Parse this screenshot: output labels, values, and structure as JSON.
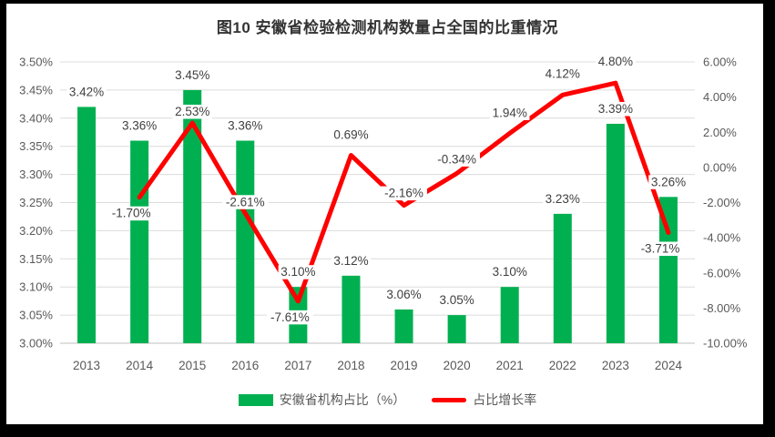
{
  "chart_data": {
    "type": "combo-bar-line",
    "title": "图10 安徽省检验检测机构数量占全国的比重情况",
    "categories": [
      "2013",
      "2014",
      "2015",
      "2016",
      "2017",
      "2018",
      "2019",
      "2020",
      "2021",
      "2022",
      "2023",
      "2024"
    ],
    "series": [
      {
        "name": "安徽省机构占比（%）",
        "type": "bar",
        "axis": "left",
        "color": "#00B050",
        "values": [
          3.42,
          3.36,
          3.45,
          3.36,
          3.1,
          3.12,
          3.06,
          3.05,
          3.1,
          3.23,
          3.39,
          3.26
        ],
        "labels": [
          "3.42%",
          "3.36%",
          "3.45%",
          "3.36%",
          "3.10%",
          "3.12%",
          "3.06%",
          "3.05%",
          "3.10%",
          "3.23%",
          "3.39%",
          "3.26%"
        ]
      },
      {
        "name": "占比增长率",
        "type": "line",
        "axis": "right",
        "color": "#FF0000",
        "values": [
          null,
          -1.7,
          2.53,
          -2.61,
          -7.61,
          0.69,
          -2.16,
          -0.34,
          1.94,
          4.12,
          4.8,
          -3.71
        ],
        "labels": [
          "",
          "-1.70%",
          "2.53%",
          "-2.61%",
          "-7.61%",
          "0.69%",
          "-2.16%",
          "-0.34%",
          "1.94%",
          "4.12%",
          "4.80%",
          "-3.71%"
        ],
        "label_baseline_offsets": [
          0,
          22,
          -8,
          -8,
          22,
          -18,
          -9,
          -11,
          -18,
          -19,
          -19,
          22
        ]
      }
    ],
    "left_axis": {
      "min": 3.0,
      "max": 3.5,
      "ticks": [
        "3.00%",
        "3.05%",
        "3.10%",
        "3.15%",
        "3.20%",
        "3.25%",
        "3.30%",
        "3.35%",
        "3.40%",
        "3.45%",
        "3.50%"
      ]
    },
    "right_axis": {
      "min": -10,
      "max": 6,
      "ticks": [
        "-10.00%",
        "-8.00%",
        "-6.00%",
        "-4.00%",
        "-2.00%",
        "0.00%",
        "2.00%",
        "4.00%",
        "6.00%"
      ]
    },
    "legend_position": "bottom",
    "grid": true
  },
  "colors": {
    "bar": "#00B050",
    "line": "#FF0000",
    "grid": "#DCDCDC",
    "axis_line": "#BFBFBF",
    "tick_text": "#595959",
    "data_label": "#404040",
    "title_text": "#333333",
    "frame": "#000000",
    "background": "#FFFFFF"
  }
}
